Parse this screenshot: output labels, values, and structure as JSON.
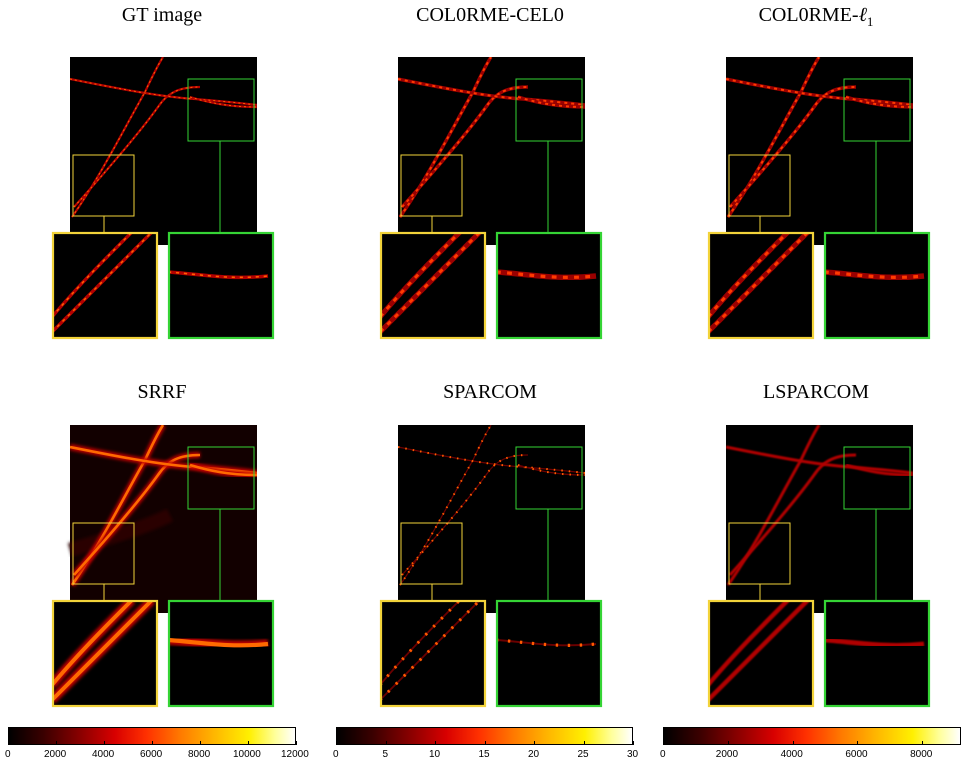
{
  "figure": {
    "panels": [
      {
        "key": "gt",
        "title": "GT image",
        "style": "gt"
      },
      {
        "key": "cel0",
        "title": "COL0RME-CEL0",
        "style": "sparse"
      },
      {
        "key": "l1",
        "title": "COL0RME-ℓ1",
        "style": "sparse"
      },
      {
        "key": "srrf",
        "title": "SRRF",
        "style": "blur"
      },
      {
        "key": "sparcom",
        "title": "SPARCOM",
        "style": "dots"
      },
      {
        "key": "lsparcom",
        "title": "LSPARCOM",
        "style": "soft"
      }
    ],
    "inset_colors": {
      "yellow": "#f2d33a",
      "green": "#35d435"
    },
    "colorbars": [
      {
        "ticks": [
          "0",
          "2000",
          "4000",
          "6000",
          "8000",
          "10000",
          "12000"
        ]
      },
      {
        "ticks": [
          "0",
          "5",
          "10",
          "15",
          "20",
          "25",
          "30"
        ]
      },
      {
        "ticks": [
          "0",
          "2000",
          "4000",
          "6000",
          "8000"
        ]
      }
    ],
    "colormap": "hot"
  }
}
